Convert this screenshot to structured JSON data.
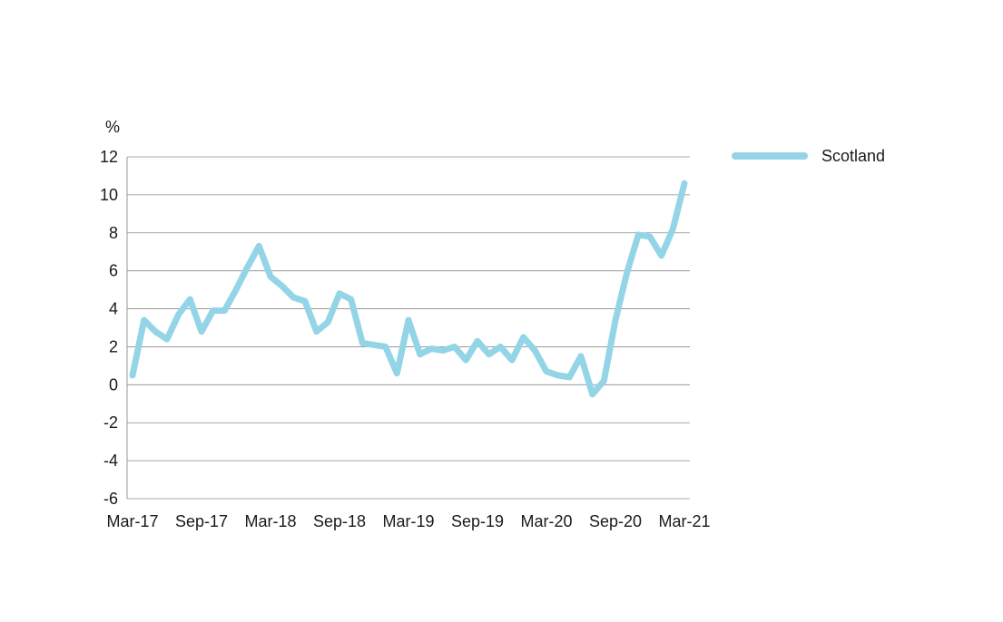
{
  "chart_data": {
    "type": "line",
    "ylabel": "%",
    "xlabel": "",
    "title": "",
    "ylim": [
      -6,
      12
    ],
    "yticks": [
      "12",
      "10",
      "8",
      "6",
      "4",
      "2",
      "0",
      "-2",
      "-4",
      "-6"
    ],
    "xticks": [
      {
        "label": "Mar-17",
        "index": 0
      },
      {
        "label": "Sep-17",
        "index": 6
      },
      {
        "label": "Mar-18",
        "index": 12
      },
      {
        "label": "Sep-18",
        "index": 18
      },
      {
        "label": "Mar-19",
        "index": 24
      },
      {
        "label": "Sep-19",
        "index": 30
      },
      {
        "label": "Mar-20",
        "index": 36
      },
      {
        "label": "Sep-20",
        "index": 42
      },
      {
        "label": "Mar-21",
        "index": 48
      }
    ],
    "grid": true,
    "legend_position": "right",
    "series": [
      {
        "name": "Scotland",
        "color": "#93d5e6",
        "x": [
          "Mar-17",
          "Apr-17",
          "May-17",
          "Jun-17",
          "Jul-17",
          "Aug-17",
          "Sep-17",
          "Oct-17",
          "Nov-17",
          "Dec-17",
          "Jan-18",
          "Feb-18",
          "Mar-18",
          "Apr-18",
          "May-18",
          "Jun-18",
          "Jul-18",
          "Aug-18",
          "Sep-18",
          "Oct-18",
          "Nov-18",
          "Dec-18",
          "Jan-19",
          "Feb-19",
          "Mar-19",
          "Apr-19",
          "May-19",
          "Jun-19",
          "Jul-19",
          "Aug-19",
          "Sep-19",
          "Oct-19",
          "Nov-19",
          "Dec-19",
          "Jan-20",
          "Feb-20",
          "Mar-20",
          "Apr-20",
          "May-20",
          "Jun-20",
          "Jul-20",
          "Aug-20",
          "Sep-20",
          "Oct-20",
          "Nov-20",
          "Dec-20",
          "Jan-21",
          "Feb-21",
          "Mar-21"
        ],
        "values": [
          0.5,
          3.4,
          2.8,
          2.4,
          3.7,
          4.5,
          2.8,
          3.9,
          3.9,
          5.0,
          6.2,
          7.3,
          5.7,
          5.2,
          4.6,
          4.4,
          2.8,
          3.3,
          4.8,
          4.5,
          2.2,
          2.1,
          2.0,
          0.6,
          3.4,
          1.6,
          1.9,
          1.8,
          2.0,
          1.3,
          2.3,
          1.6,
          2.0,
          1.3,
          2.5,
          1.8,
          0.7,
          0.5,
          0.4,
          1.5,
          -0.5,
          0.2,
          3.4,
          5.9,
          7.9,
          7.8,
          6.8,
          8.2,
          10.6
        ]
      }
    ]
  }
}
